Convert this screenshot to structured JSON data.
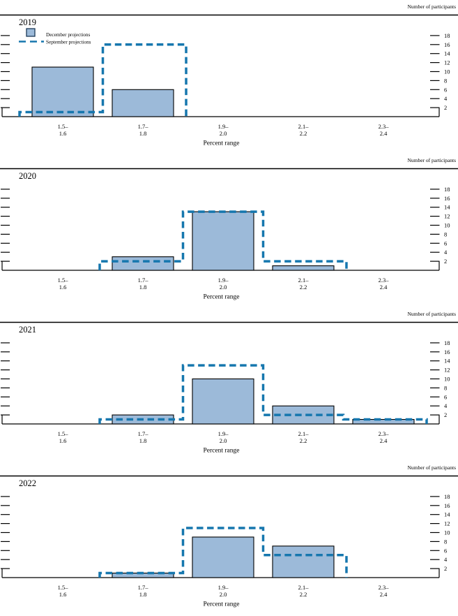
{
  "figure": {
    "y_axis_label": "Number of participants",
    "x_axis_label": "Percent range",
    "y_ticks": [
      2,
      4,
      6,
      8,
      10,
      12,
      14,
      16,
      18
    ],
    "bin_labels": [
      {
        "line1": "1.5–",
        "line2": "1.6"
      },
      {
        "line1": "1.7–",
        "line2": "1.8"
      },
      {
        "line1": "1.9–",
        "line2": "2.0"
      },
      {
        "line1": "2.1–",
        "line2": "2.2"
      },
      {
        "line1": "2.3–",
        "line2": "2.4"
      }
    ],
    "colors": {
      "bar_fill": "#9cbad9",
      "bar_border": "#000000",
      "september_dash": "#1677ae",
      "axis": "#000000"
    }
  },
  "legend": {
    "december_label": "December projections",
    "september_label": "September projections"
  },
  "chart_data": [
    {
      "type": "bar",
      "title": "2019",
      "categories": [
        "1.5–1.6",
        "1.7–1.8",
        "1.9–2.0",
        "2.1–2.2",
        "2.3–2.4"
      ],
      "series": [
        {
          "name": "December projections",
          "values": [
            11,
            6,
            0,
            0,
            0
          ]
        },
        {
          "name": "September projections",
          "values": [
            1,
            16,
            0,
            0,
            0
          ]
        }
      ],
      "xlabel": "Percent range",
      "ylabel": "Number of participants",
      "ylim": [
        0,
        19
      ],
      "grid": false,
      "legend_position": "top-left",
      "show_legend": true
    },
    {
      "type": "bar",
      "title": "2020",
      "categories": [
        "1.5–1.6",
        "1.7–1.8",
        "1.9–2.0",
        "2.1–2.2",
        "2.3–2.4"
      ],
      "series": [
        {
          "name": "December projections",
          "values": [
            0,
            3,
            13,
            1,
            0
          ]
        },
        {
          "name": "September projections",
          "values": [
            0,
            2,
            13,
            2,
            0
          ]
        }
      ],
      "xlabel": "Percent range",
      "ylabel": "Number of participants",
      "ylim": [
        0,
        19
      ],
      "grid": false,
      "show_legend": false
    },
    {
      "type": "bar",
      "title": "2021",
      "categories": [
        "1.5–1.6",
        "1.7–1.8",
        "1.9–2.0",
        "2.1–2.2",
        "2.3–2.4"
      ],
      "series": [
        {
          "name": "December projections",
          "values": [
            0,
            2,
            10,
            4,
            1
          ]
        },
        {
          "name": "September projections",
          "values": [
            0,
            1,
            13,
            2,
            1
          ]
        }
      ],
      "xlabel": "Percent range",
      "ylabel": "Number of participants",
      "ylim": [
        0,
        19
      ],
      "grid": false,
      "show_legend": false
    },
    {
      "type": "bar",
      "title": "2022",
      "categories": [
        "1.5–1.6",
        "1.7–1.8",
        "1.9–2.0",
        "2.1–2.2",
        "2.3–2.4"
      ],
      "series": [
        {
          "name": "December projections",
          "values": [
            0,
            1,
            9,
            7,
            0
          ]
        },
        {
          "name": "September projections",
          "values": [
            0,
            1,
            11,
            5,
            0
          ]
        }
      ],
      "xlabel": "Percent range",
      "ylabel": "Number of participants",
      "ylim": [
        0,
        19
      ],
      "grid": false,
      "show_legend": false
    }
  ]
}
